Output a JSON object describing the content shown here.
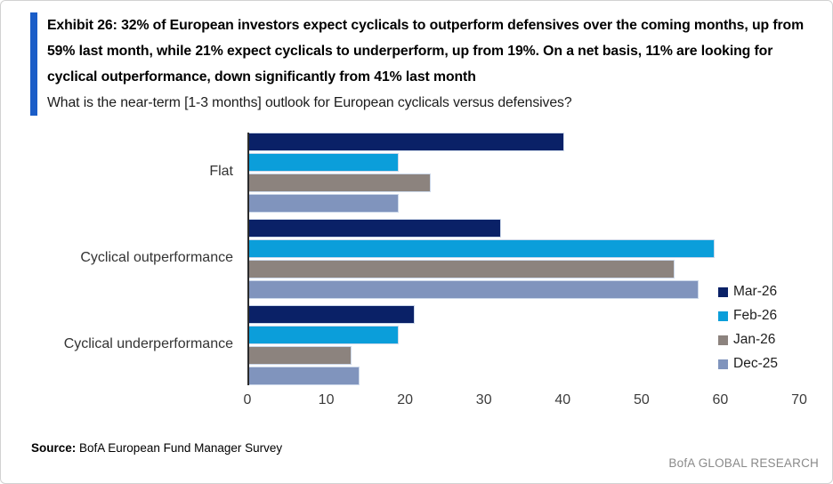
{
  "header": {
    "title": "Exhibit 26: 32% of European investors expect cyclicals to outperform defensives over the coming months, up from 59% last month, while 21% expect cyclicals to underperform, up from 19%. On a net basis, 11% are looking for cyclical outperformance, down significantly from 41% last month",
    "subtitle": "What is the near-term [1-3 months] outlook for European cyclicals versus defensives?",
    "accent_color": "#1a5dc8"
  },
  "chart_data": {
    "type": "bar",
    "orientation": "horizontal",
    "title": "What is the near-term [1-3 months] outlook for European cyclicals versus defensives?",
    "categories": [
      "Flat",
      "Cyclical outperformance",
      "Cyclical underperformance"
    ],
    "series": [
      {
        "name": "Mar-26",
        "color": "#0a2167",
        "values": [
          40,
          32,
          21
        ]
      },
      {
        "name": "Feb-26",
        "color": "#0b9eda",
        "values": [
          19,
          59,
          19
        ]
      },
      {
        "name": "Jan-26",
        "color": "#8c837e",
        "values": [
          23,
          54,
          13
        ]
      },
      {
        "name": "Dec-25",
        "color": "#8094bd",
        "values": [
          19,
          57,
          14
        ]
      }
    ],
    "xlabel": "",
    "ylabel": "",
    "xlim": [
      0,
      70
    ],
    "xticks": [
      0,
      10,
      20,
      30,
      40,
      50,
      60,
      70
    ],
    "grid": false,
    "legend_position": "right",
    "axis_color": "#2b2b2b"
  },
  "footer": {
    "source_label": "Source:",
    "source_text": " BofA European Fund Manager Survey",
    "branding": "BofA GLOBAL RESEARCH"
  }
}
